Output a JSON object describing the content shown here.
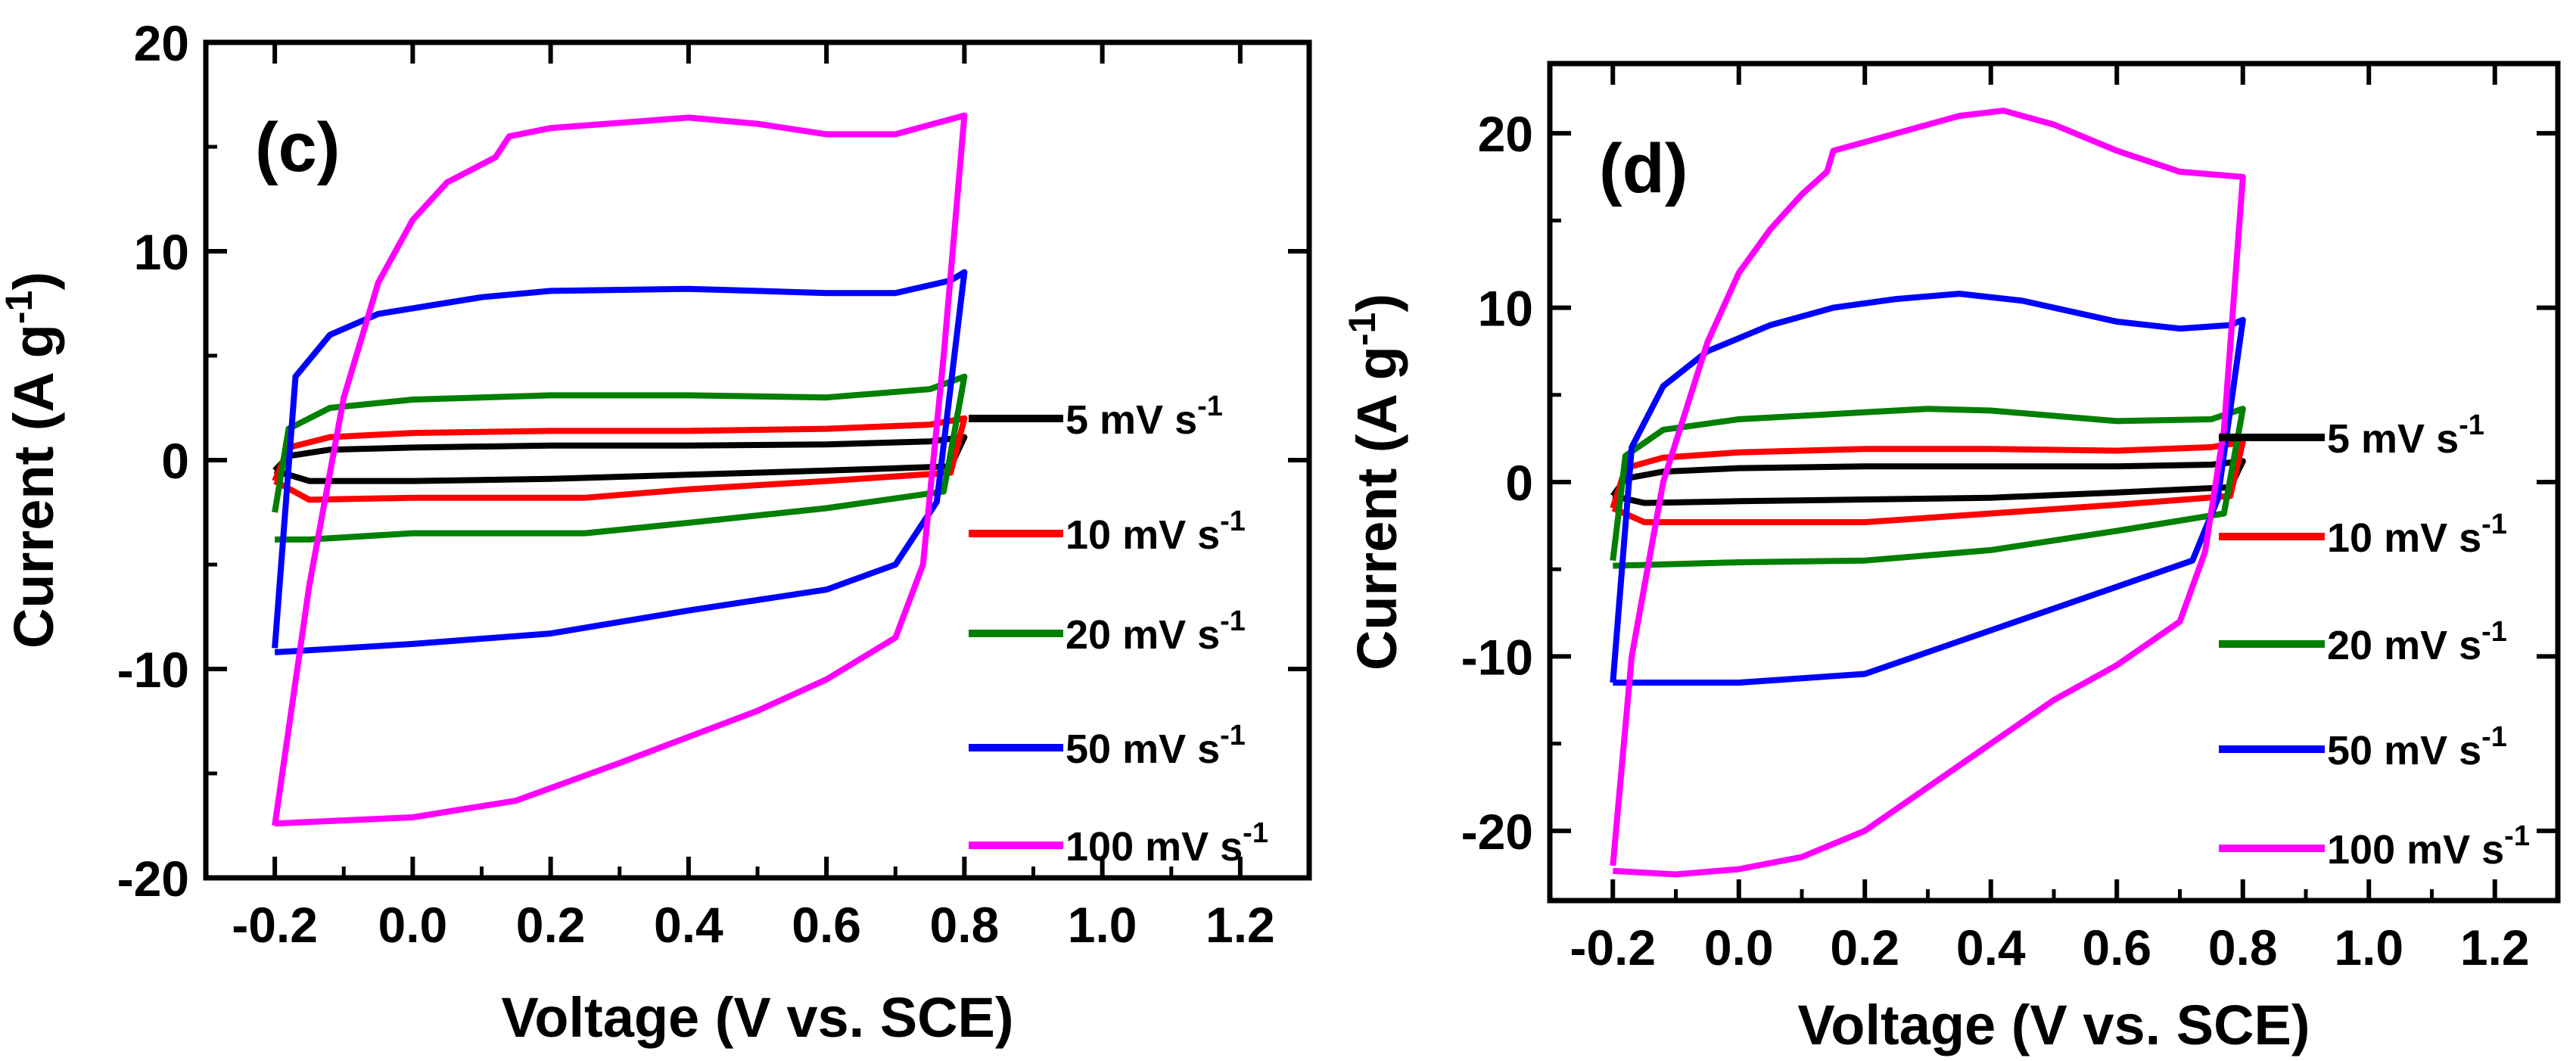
{
  "figure": {
    "description_free": true
  },
  "chart_data": [
    {
      "type": "line",
      "panel_label": "(c)",
      "xlabel": "Voltage (V vs. SCE)",
      "ylabel_main": "Current (A g",
      "ylabel_sup": "-1",
      "ylabel_close": ")",
      "xlim": [
        -0.3,
        1.3
      ],
      "ylim": [
        -20,
        20
      ],
      "xticks": [
        -0.2,
        0.0,
        0.2,
        0.4,
        0.6,
        0.8,
        1.0,
        1.2
      ],
      "xtick_labels": [
        "-0.2",
        "0.0",
        "0.2",
        "0.4",
        "0.6",
        "0.8",
        "1.0",
        "1.2"
      ],
      "yticks": [
        -20,
        -10,
        0,
        10,
        20
      ],
      "ytick_labels": [
        "-20",
        "-10",
        "0",
        "10",
        "20"
      ],
      "legend_position": "right",
      "series": [
        {
          "name": "5 mV s",
          "sup": "-1",
          "color": "#000000",
          "upper": [
            [
              -0.2,
              -0.5
            ],
            [
              -0.18,
              0.2
            ],
            [
              -0.12,
              0.5
            ],
            [
              0.0,
              0.6
            ],
            [
              0.2,
              0.7
            ],
            [
              0.4,
              0.7
            ],
            [
              0.6,
              0.75
            ],
            [
              0.75,
              0.9
            ],
            [
              0.8,
              1.1
            ]
          ],
          "lower": [
            [
              0.8,
              1.1
            ],
            [
              0.78,
              -0.3
            ],
            [
              0.6,
              -0.5
            ],
            [
              0.4,
              -0.7
            ],
            [
              0.2,
              -0.9
            ],
            [
              0.0,
              -1.0
            ],
            [
              -0.15,
              -1.0
            ],
            [
              -0.2,
              -0.5
            ]
          ]
        },
        {
          "name": "10 mV s",
          "sup": "-1",
          "color": "#ff0000",
          "upper": [
            [
              -0.2,
              -1.0
            ],
            [
              -0.18,
              0.6
            ],
            [
              -0.12,
              1.1
            ],
            [
              0.0,
              1.3
            ],
            [
              0.2,
              1.4
            ],
            [
              0.4,
              1.4
            ],
            [
              0.6,
              1.5
            ],
            [
              0.75,
              1.7
            ],
            [
              0.8,
              2.0
            ]
          ],
          "lower": [
            [
              0.8,
              2.0
            ],
            [
              0.78,
              -0.6
            ],
            [
              0.6,
              -1.0
            ],
            [
              0.4,
              -1.4
            ],
            [
              0.25,
              -1.8
            ],
            [
              0.0,
              -1.8
            ],
            [
              -0.15,
              -1.9
            ],
            [
              -0.2,
              -1.0
            ]
          ]
        },
        {
          "name": "20 mV s",
          "sup": "-1",
          "color": "#008000",
          "upper": [
            [
              -0.2,
              -2.5
            ],
            [
              -0.18,
              1.5
            ],
            [
              -0.12,
              2.5
            ],
            [
              0.0,
              2.9
            ],
            [
              0.2,
              3.1
            ],
            [
              0.4,
              3.1
            ],
            [
              0.6,
              3.0
            ],
            [
              0.75,
              3.4
            ],
            [
              0.8,
              4.0
            ]
          ],
          "lower": [
            [
              0.8,
              4.0
            ],
            [
              0.77,
              -1.5
            ],
            [
              0.6,
              -2.3
            ],
            [
              0.4,
              -3.0
            ],
            [
              0.25,
              -3.5
            ],
            [
              0.0,
              -3.5
            ],
            [
              -0.15,
              -3.8
            ],
            [
              -0.2,
              -3.8
            ]
          ]
        },
        {
          "name": "50 mV s",
          "sup": "-1",
          "color": "#0000ff",
          "upper": [
            [
              -0.2,
              -9.0
            ],
            [
              -0.17,
              4.0
            ],
            [
              -0.12,
              6.0
            ],
            [
              -0.05,
              7.0
            ],
            [
              0.1,
              7.8
            ],
            [
              0.2,
              8.1
            ],
            [
              0.4,
              8.2
            ],
            [
              0.6,
              8.0
            ],
            [
              0.7,
              8.0
            ],
            [
              0.78,
              8.6
            ],
            [
              0.8,
              9.0
            ]
          ],
          "lower": [
            [
              0.8,
              9.0
            ],
            [
              0.76,
              -2.0
            ],
            [
              0.7,
              -5.0
            ],
            [
              0.6,
              -6.2
            ],
            [
              0.4,
              -7.2
            ],
            [
              0.2,
              -8.3
            ],
            [
              0.0,
              -8.8
            ],
            [
              -0.2,
              -9.2
            ]
          ]
        },
        {
          "name": "100 mV s",
          "sup": "-1",
          "color": "#ff00ff",
          "upper": [
            [
              -0.2,
              -17.5
            ],
            [
              -0.15,
              -6.0
            ],
            [
              -0.1,
              3.0
            ],
            [
              -0.05,
              8.5
            ],
            [
              0.0,
              11.5
            ],
            [
              0.05,
              13.3
            ],
            [
              0.12,
              14.5
            ],
            [
              0.14,
              15.5
            ],
            [
              0.2,
              15.9
            ],
            [
              0.4,
              16.4
            ],
            [
              0.5,
              16.1
            ],
            [
              0.6,
              15.6
            ],
            [
              0.7,
              15.6
            ],
            [
              0.8,
              16.5
            ]
          ],
          "lower": [
            [
              0.8,
              16.5
            ],
            [
              0.77,
              5.0
            ],
            [
              0.74,
              -5.0
            ],
            [
              0.7,
              -8.5
            ],
            [
              0.6,
              -10.5
            ],
            [
              0.5,
              -12.0
            ],
            [
              0.3,
              -14.5
            ],
            [
              0.15,
              -16.3
            ],
            [
              0.0,
              -17.1
            ],
            [
              -0.2,
              -17.4
            ]
          ]
        }
      ]
    },
    {
      "type": "line",
      "panel_label": "(d)",
      "xlabel": "Voltage (V vs. SCE)",
      "ylabel_main": "Current (A g",
      "ylabel_sup": "-1",
      "ylabel_close": ")",
      "xlim": [
        -0.3,
        1.3
      ],
      "ylim": [
        -24,
        24
      ],
      "xticks": [
        -0.2,
        0.0,
        0.2,
        0.4,
        0.6,
        0.8,
        1.0,
        1.2
      ],
      "xtick_labels": [
        "-0.2",
        "0.0",
        "0.2",
        "0.4",
        "0.6",
        "0.8",
        "1.0",
        "1.2"
      ],
      "yticks": [
        -20,
        -10,
        0,
        10,
        20
      ],
      "ytick_labels": [
        "-20",
        "-10",
        "0",
        "10",
        "20"
      ],
      "legend_position": "right",
      "series": [
        {
          "name": "5 mV s",
          "sup": "-1",
          "color": "#000000",
          "upper": [
            [
              -0.2,
              -0.8
            ],
            [
              -0.18,
              0.2
            ],
            [
              -0.12,
              0.6
            ],
            [
              0.0,
              0.8
            ],
            [
              0.2,
              0.9
            ],
            [
              0.4,
              0.9
            ],
            [
              0.6,
              0.9
            ],
            [
              0.75,
              1.0
            ],
            [
              0.8,
              1.2
            ]
          ],
          "lower": [
            [
              0.8,
              1.2
            ],
            [
              0.78,
              -0.3
            ],
            [
              0.6,
              -0.6
            ],
            [
              0.4,
              -0.9
            ],
            [
              0.2,
              -1.0
            ],
            [
              0.0,
              -1.1
            ],
            [
              -0.15,
              -1.2
            ],
            [
              -0.2,
              -0.8
            ]
          ]
        },
        {
          "name": "10 mV s",
          "sup": "-1",
          "color": "#ff0000",
          "upper": [
            [
              -0.2,
              -1.5
            ],
            [
              -0.18,
              0.8
            ],
            [
              -0.12,
              1.4
            ],
            [
              0.0,
              1.7
            ],
            [
              0.2,
              1.9
            ],
            [
              0.4,
              1.9
            ],
            [
              0.6,
              1.8
            ],
            [
              0.75,
              2.0
            ],
            [
              0.8,
              2.3
            ]
          ],
          "lower": [
            [
              0.8,
              2.3
            ],
            [
              0.78,
              -0.8
            ],
            [
              0.6,
              -1.3
            ],
            [
              0.4,
              -1.8
            ],
            [
              0.2,
              -2.3
            ],
            [
              0.0,
              -2.3
            ],
            [
              -0.15,
              -2.3
            ],
            [
              -0.2,
              -1.5
            ]
          ]
        },
        {
          "name": "20 mV s",
          "sup": "-1",
          "color": "#008000",
          "upper": [
            [
              -0.2,
              -4.5
            ],
            [
              -0.18,
              1.5
            ],
            [
              -0.12,
              3.0
            ],
            [
              0.0,
              3.6
            ],
            [
              0.2,
              4.0
            ],
            [
              0.3,
              4.2
            ],
            [
              0.4,
              4.1
            ],
            [
              0.6,
              3.5
            ],
            [
              0.75,
              3.6
            ],
            [
              0.8,
              4.2
            ]
          ],
          "lower": [
            [
              0.8,
              4.2
            ],
            [
              0.77,
              -1.8
            ],
            [
              0.6,
              -2.8
            ],
            [
              0.4,
              -3.9
            ],
            [
              0.2,
              -4.5
            ],
            [
              0.0,
              -4.6
            ],
            [
              -0.2,
              -4.8
            ]
          ]
        },
        {
          "name": "50 mV s",
          "sup": "-1",
          "color": "#0000ff",
          "upper": [
            [
              -0.2,
              -11.5
            ],
            [
              -0.17,
              2.0
            ],
            [
              -0.12,
              5.5
            ],
            [
              -0.05,
              7.5
            ],
            [
              0.05,
              9.0
            ],
            [
              0.15,
              10.0
            ],
            [
              0.25,
              10.5
            ],
            [
              0.35,
              10.8
            ],
            [
              0.45,
              10.4
            ],
            [
              0.6,
              9.2
            ],
            [
              0.7,
              8.8
            ],
            [
              0.78,
              9.0
            ],
            [
              0.8,
              9.3
            ]
          ],
          "lower": [
            [
              0.8,
              9.3
            ],
            [
              0.76,
              -1.0
            ],
            [
              0.72,
              -4.5
            ],
            [
              0.6,
              -6.0
            ],
            [
              0.4,
              -8.5
            ],
            [
              0.2,
              -11.0
            ],
            [
              0.0,
              -11.5
            ],
            [
              -0.2,
              -11.5
            ]
          ]
        },
        {
          "name": "100 mV s",
          "sup": "-1",
          "color": "#ff00ff",
          "upper": [
            [
              -0.2,
              -22.0
            ],
            [
              -0.17,
              -10.0
            ],
            [
              -0.12,
              0.0
            ],
            [
              -0.05,
              8.0
            ],
            [
              0.0,
              12.0
            ],
            [
              0.05,
              14.5
            ],
            [
              0.1,
              16.5
            ],
            [
              0.14,
              17.8
            ],
            [
              0.15,
              19.0
            ],
            [
              0.25,
              20.0
            ],
            [
              0.35,
              21.0
            ],
            [
              0.42,
              21.3
            ],
            [
              0.5,
              20.5
            ],
            [
              0.6,
              19.0
            ],
            [
              0.7,
              17.8
            ],
            [
              0.8,
              17.5
            ]
          ],
          "lower": [
            [
              0.8,
              17.5
            ],
            [
              0.77,
              3.0
            ],
            [
              0.74,
              -4.0
            ],
            [
              0.7,
              -8.0
            ],
            [
              0.6,
              -10.5
            ],
            [
              0.5,
              -12.5
            ],
            [
              0.4,
              -15.0
            ],
            [
              0.3,
              -17.5
            ],
            [
              0.2,
              -20.0
            ],
            [
              0.1,
              -21.5
            ],
            [
              0.0,
              -22.2
            ],
            [
              -0.1,
              -22.5
            ],
            [
              -0.2,
              -22.3
            ]
          ]
        }
      ]
    }
  ]
}
